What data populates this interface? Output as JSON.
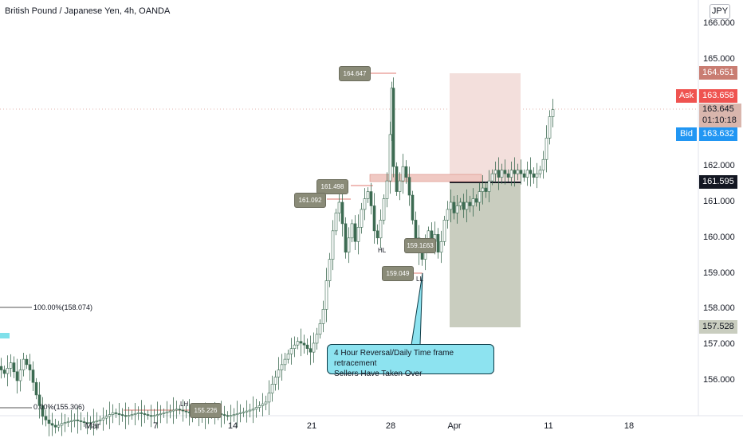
{
  "header": {
    "title": "British Pound / Japanese Yen, 4h, OANDA",
    "currency_button": "JPY"
  },
  "price_axis": {
    "labels": [
      "166.000",
      "165.000",
      "162.000",
      "161.000",
      "160.000",
      "159.000",
      "158.000",
      "157.000",
      "156.000"
    ],
    "tags": {
      "target": "164.651",
      "ask_label": "Ask",
      "ask": "163.658",
      "last": "163.645",
      "countdown": "01:10:18",
      "bid_label": "Bid",
      "bid": "163.632",
      "entry": "161.595",
      "stop": "157.528"
    }
  },
  "time_axis": {
    "labels": [
      "Mar",
      "7",
      "14",
      "21",
      "28",
      "Apr",
      "11",
      "18"
    ]
  },
  "annotations": {
    "fib_100": "100.00%(158.074)",
    "fib_0": "0.00%(155.306)",
    "high_label": "164.647",
    "level_161498": "161.498",
    "level_161092": "161.092",
    "level_1591": "159.1£63",
    "low_label": "159.049",
    "hl": "HL",
    "ll": "LL",
    "lh": "LH",
    "lh_value": "155.226",
    "callout_line1": "4 Hour Reversal/Daily Time frame retracement",
    "callout_line2": "Sellers Have Taken Over"
  },
  "colors": {
    "up": "#26a69a",
    "down": "#ef5350",
    "candle": "#3d6b52",
    "target_tag": "#c97d72",
    "ask": "#ef5350",
    "bid": "#2196f3",
    "last": "#d9b6ad",
    "profit_zone": "#f3dfdc",
    "loss_zone": "#c9cdbf"
  },
  "chart_data": {
    "type": "candlestick",
    "instrument": "British Pound / Japanese Yen",
    "timeframe": "4h",
    "broker": "OANDA",
    "y_ticks": [
      156,
      157,
      158,
      159,
      160,
      161,
      162,
      165,
      166
    ],
    "x_tick_labels": [
      "Mar",
      "7",
      "14",
      "21",
      "28",
      "Apr",
      "11",
      "18"
    ],
    "position": {
      "side": "long",
      "entry": 161.595,
      "target": 164.651,
      "stop": 157.528
    },
    "current": {
      "ask": 163.658,
      "last": 163.645,
      "bid": 163.632,
      "countdown": "01:10:18"
    },
    "fibonacci": [
      {
        "level": "100.00%",
        "price": 158.074
      },
      {
        "level": "0.00%",
        "price": 155.306
      }
    ],
    "marked_prices": [
      164.647,
      161.498,
      161.092,
      159.049,
      155.226
    ],
    "path": [
      [
        0,
        156.4
      ],
      [
        8,
        156.2
      ],
      [
        16,
        156.5
      ],
      [
        24,
        156.0
      ],
      [
        32,
        156.6
      ],
      [
        40,
        156.3
      ],
      [
        48,
        155.6
      ],
      [
        56,
        155.0
      ],
      [
        64,
        154.8
      ],
      [
        72,
        154.7
      ],
      [
        80,
        154.8
      ],
      [
        96,
        154.9
      ],
      [
        112,
        154.8
      ],
      [
        128,
        154.9
      ],
      [
        144,
        155.1
      ],
      [
        160,
        155.0
      ],
      [
        176,
        155.1
      ],
      [
        192,
        155.0
      ],
      [
        208,
        155.1
      ],
      [
        224,
        155.2
      ],
      [
        240,
        155.1
      ],
      [
        256,
        155.0
      ],
      [
        272,
        155.1
      ],
      [
        288,
        155.0
      ],
      [
        304,
        155.1
      ],
      [
        320,
        155.2
      ],
      [
        336,
        155.4
      ],
      [
        344,
        155.9
      ],
      [
        352,
        156.3
      ],
      [
        360,
        156.6
      ],
      [
        368,
        156.9
      ],
      [
        376,
        157.1
      ],
      [
        384,
        157.0
      ],
      [
        392,
        156.8
      ],
      [
        400,
        157.3
      ],
      [
        404,
        157.6
      ],
      [
        408,
        158.0
      ],
      [
        412,
        158.8
      ],
      [
        416,
        159.4
      ],
      [
        420,
        160.2
      ],
      [
        424,
        160.7
      ],
      [
        428,
        161.0
      ],
      [
        432,
        160.4
      ],
      [
        436,
        159.6
      ],
      [
        440,
        160.0
      ],
      [
        444,
        160.4
      ],
      [
        448,
        159.9
      ],
      [
        452,
        160.3
      ],
      [
        456,
        160.8
      ],
      [
        460,
        161.1
      ],
      [
        464,
        161.3
      ],
      [
        468,
        160.9
      ],
      [
        472,
        160.2
      ],
      [
        476,
        160.0
      ],
      [
        480,
        160.5
      ],
      [
        484,
        161.1
      ],
      [
        488,
        161.6
      ],
      [
        490,
        162.9
      ],
      [
        492,
        164.2
      ],
      [
        496,
        162.0
      ],
      [
        500,
        161.3
      ],
      [
        504,
        161.6
      ],
      [
        508,
        162.0
      ],
      [
        512,
        161.7
      ],
      [
        516,
        161.2
      ],
      [
        520,
        160.5
      ],
      [
        524,
        160.0
      ],
      [
        528,
        159.6
      ],
      [
        532,
        159.4
      ],
      [
        536,
        159.8
      ],
      [
        540,
        160.2
      ],
      [
        544,
        159.9
      ],
      [
        548,
        160.1
      ],
      [
        552,
        159.6
      ],
      [
        556,
        159.9
      ],
      [
        560,
        160.5
      ],
      [
        564,
        160.8
      ],
      [
        568,
        161.0
      ],
      [
        572,
        160.7
      ],
      [
        576,
        160.9
      ],
      [
        580,
        161.0
      ],
      [
        584,
        160.8
      ],
      [
        588,
        161.0
      ],
      [
        592,
        160.9
      ],
      [
        596,
        161.1
      ],
      [
        600,
        161.0
      ],
      [
        604,
        161.3
      ],
      [
        608,
        161.4
      ],
      [
        612,
        161.3
      ],
      [
        616,
        161.6
      ],
      [
        620,
        161.8
      ],
      [
        624,
        161.9
      ],
      [
        628,
        161.7
      ],
      [
        632,
        161.9
      ],
      [
        636,
        161.8
      ],
      [
        640,
        161.7
      ],
      [
        644,
        161.9
      ],
      [
        648,
        161.8
      ],
      [
        652,
        161.9
      ],
      [
        656,
        161.8
      ],
      [
        660,
        161.7
      ],
      [
        664,
        161.9
      ],
      [
        668,
        161.8
      ],
      [
        672,
        161.7
      ],
      [
        676,
        161.8
      ],
      [
        680,
        161.9
      ],
      [
        684,
        162.2
      ],
      [
        688,
        162.8
      ],
      [
        692,
        163.4
      ],
      [
        696,
        163.6
      ]
    ]
  }
}
